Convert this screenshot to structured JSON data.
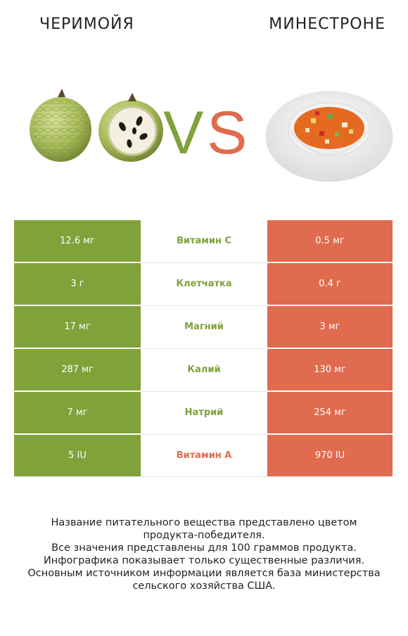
{
  "colors": {
    "winner_left": "#7fa23a",
    "winner_right": "#e06b4e"
  },
  "header": {
    "left_title": "ЧЕРИМОЙЯ",
    "right_title": "МИНЕСТРОНЕ",
    "vs_text": "VS"
  },
  "rows": [
    {
      "left": "12.6 мг",
      "nutrient": "Витамин C",
      "right": "0.5 мг",
      "winner": "left"
    },
    {
      "left": "3 г",
      "nutrient": "Клетчатка",
      "right": "0.4 г",
      "winner": "left"
    },
    {
      "left": "17 мг",
      "nutrient": "Магний",
      "right": "3 мг",
      "winner": "left"
    },
    {
      "left": "287 мг",
      "nutrient": "Калий",
      "right": "130 мг",
      "winner": "left"
    },
    {
      "left": "7 мг",
      "nutrient": "Натрий",
      "right": "254 мг",
      "winner": "left"
    },
    {
      "left": "5 IU",
      "nutrient": "Витамин A",
      "right": "970 IU",
      "winner": "right"
    }
  ],
  "footnote": [
    "Название питательного вещества представлено цветом",
    "продукта-победителя.",
    "Все значения представлены для 100 граммов продукта.",
    "Инфографика показывает только существенные различия.",
    "Основным источником информации является база министерства",
    "сельского хозяйства США."
  ]
}
